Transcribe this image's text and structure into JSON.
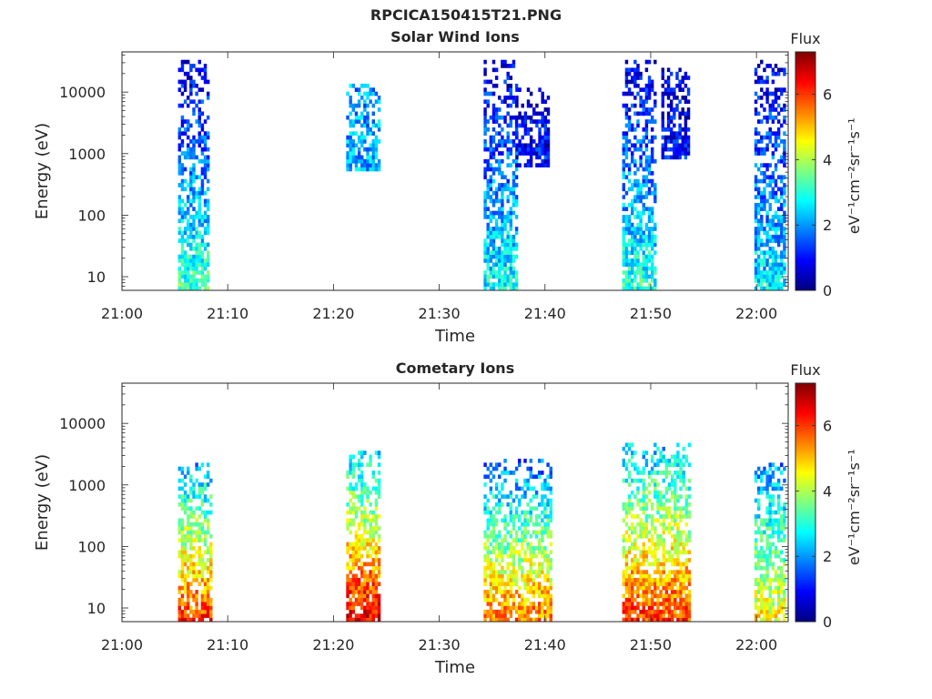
{
  "figure_title": "RPCICA150415T21.PNG",
  "colormap": [
    "#00007f",
    "#0000ff",
    "#007fff",
    "#00ffff",
    "#7fff7f",
    "#ffff00",
    "#ff7f00",
    "#ff0000",
    "#7f0000"
  ],
  "chart_data": [
    {
      "type": "heatmap",
      "title": "Solar Wind Ions",
      "xlabel": "Time",
      "ylabel": "Energy (eV)",
      "x_tick_labels": [
        "21:00",
        "21:10",
        "21:20",
        "21:30",
        "21:40",
        "21:50",
        "22:00"
      ],
      "x_tick_values_min": [
        0,
        10,
        20,
        30,
        40,
        50,
        60
      ],
      "xlim_min": [
        0,
        63
      ],
      "y_scale": "log",
      "ylim": [
        6,
        45000
      ],
      "y_tick_labels": [
        "10",
        "100",
        "1000",
        "10000"
      ],
      "y_tick_values": [
        10,
        100,
        1000,
        10000
      ],
      "colorbar": {
        "label_top": "Flux",
        "label": "eV⁻¹cm⁻²sr⁻¹s⁻¹",
        "ticks": [
          0,
          2,
          4,
          6
        ],
        "range": [
          0,
          7.3
        ]
      },
      "bursts": [
        {
          "t_start": 5.3,
          "t_end": 8.2,
          "e_min": 6,
          "e_max": 35000,
          "flux_low": 3.2,
          "flux_high": 0.6
        },
        {
          "t_start": 21.2,
          "t_end": 24.2,
          "e_min": 500,
          "e_max": 15000,
          "flux_low": 2.2,
          "flux_high": 2.0
        },
        {
          "t_start": 34.2,
          "t_end": 37.2,
          "e_min": 6,
          "e_max": 35000,
          "flux_low": 2.8,
          "flux_high": 0.6
        },
        {
          "t_start": 37.2,
          "t_end": 40.3,
          "e_min": 600,
          "e_max": 12000,
          "flux_low": 1.0,
          "flux_high": 0.5
        },
        {
          "t_start": 47.3,
          "t_end": 50.3,
          "e_min": 6,
          "e_max": 35000,
          "flux_low": 3.0,
          "flux_high": 0.6
        },
        {
          "t_start": 51.0,
          "t_end": 53.6,
          "e_min": 800,
          "e_max": 25000,
          "flux_low": 1.0,
          "flux_high": 0.6
        },
        {
          "t_start": 59.8,
          "t_end": 62.6,
          "e_min": 6,
          "e_max": 35000,
          "flux_low": 2.6,
          "flux_high": 0.6
        }
      ]
    },
    {
      "type": "heatmap",
      "title": "Cometary Ions",
      "xlabel": "Time",
      "ylabel": "Energy (eV)",
      "x_tick_labels": [
        "21:00",
        "21:10",
        "21:20",
        "21:30",
        "21:40",
        "21:50",
        "22:00"
      ],
      "x_tick_values_min": [
        0,
        10,
        20,
        30,
        40,
        50,
        60
      ],
      "xlim_min": [
        0,
        63
      ],
      "y_scale": "log",
      "ylim": [
        6,
        45000
      ],
      "y_tick_labels": [
        "10",
        "100",
        "1000",
        "10000"
      ],
      "y_tick_values": [
        10,
        100,
        1000,
        10000
      ],
      "colorbar": {
        "label_top": "Flux",
        "label": "eV⁻¹cm⁻²sr⁻¹s⁻¹",
        "ticks": [
          0,
          2,
          4,
          6
        ],
        "range": [
          0,
          7.3
        ]
      },
      "bursts": [
        {
          "t_start": 5.3,
          "t_end": 8.4,
          "e_min": 6,
          "e_max": 2500,
          "flux_low": 6.0,
          "flux_high": 2.0
        },
        {
          "t_start": 21.2,
          "t_end": 24.3,
          "e_min": 6,
          "e_max": 4000,
          "flux_low": 6.6,
          "flux_high": 2.2
        },
        {
          "t_start": 34.2,
          "t_end": 40.6,
          "e_min": 6,
          "e_max": 3000,
          "flux_low": 5.6,
          "flux_high": 1.4
        },
        {
          "t_start": 47.3,
          "t_end": 53.6,
          "e_min": 6,
          "e_max": 5000,
          "flux_low": 6.0,
          "flux_high": 2.2
        },
        {
          "t_start": 59.8,
          "t_end": 62.6,
          "e_min": 6,
          "e_max": 2500,
          "flux_low": 4.6,
          "flux_high": 1.8
        }
      ]
    }
  ]
}
